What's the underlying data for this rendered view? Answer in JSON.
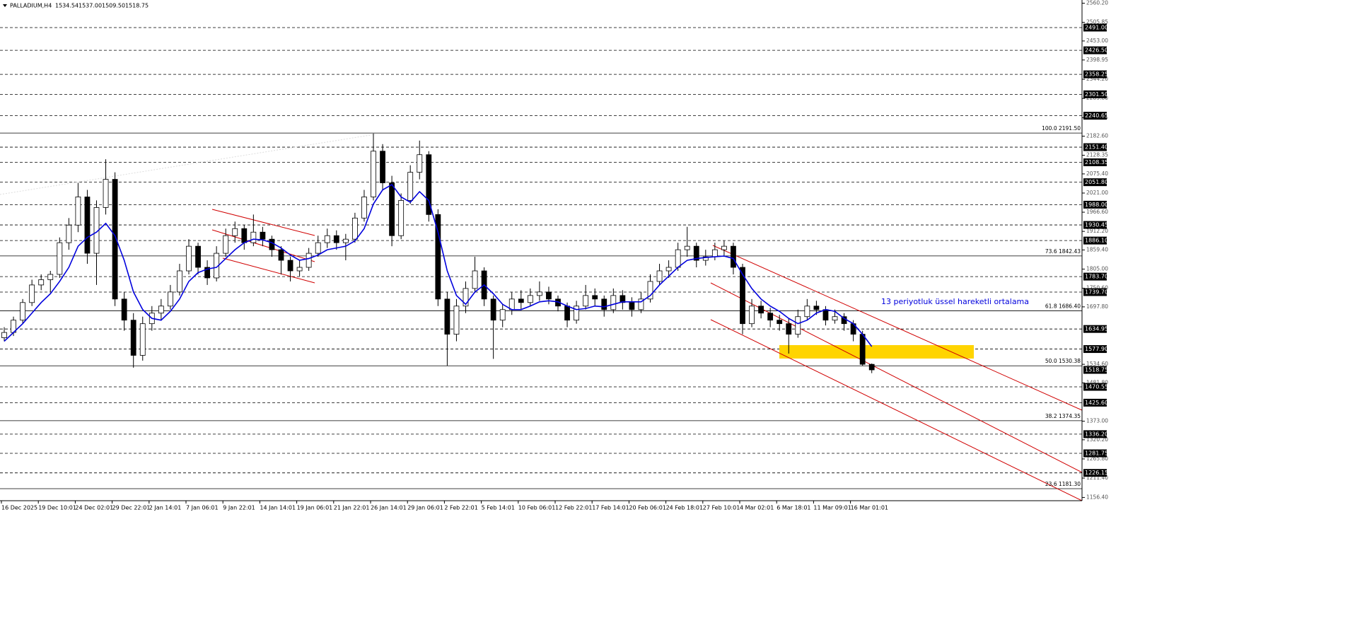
{
  "header": {
    "symbol": "PALLADIUM,H4",
    "ohlc": [
      "1534.54",
      "1537.00",
      "1509.50",
      "1518.75"
    ]
  },
  "annotation": "13 periyotluk üssel hareketli ortalama",
  "chart_data": {
    "type": "candlestick",
    "categories": [
      "16 Dec 2025",
      "19 Dec 10:01",
      "24 Dec 02:01",
      "29 Dec 22:01",
      "2 Jan 14:01",
      "7 Jan 06:01",
      "9 Jan 22:01",
      "14 Jan 14:01",
      "19 Jan 06:01",
      "21 Jan 22:01",
      "26 Jan 14:01",
      "29 Jan 06:01",
      "2 Feb 22:01",
      "5 Feb 14:01",
      "10 Feb 06:01",
      "12 Feb 22:01",
      "17 Feb 14:01",
      "20 Feb 06:01",
      "24 Feb 18:01",
      "27 Feb 10:01",
      "4 Mar 02:01",
      "6 Mar 18:01",
      "11 Mar 09:01",
      "16 Mar 01:01"
    ],
    "ylim": [
      1147.18,
      2569.34
    ],
    "yticks": [
      {
        "value": 2560.2,
        "label": "2560.20"
      },
      {
        "value": 2505.85,
        "label": "2505.85"
      },
      {
        "value": 2453,
        "label": "2453.00"
      },
      {
        "value": 2398.95,
        "label": "2398.95"
      },
      {
        "value": 2344.2,
        "label": "2344.20"
      },
      {
        "value": 2289.8,
        "label": "2289.80"
      },
      {
        "value": 2235.05,
        "label": "2235.05"
      },
      {
        "value": 2182.6,
        "label": "2182.60"
      },
      {
        "value": 2128.35,
        "label": "2128.35"
      },
      {
        "value": 2075.4,
        "label": "2075.40"
      },
      {
        "value": 2021,
        "label": "2021.00"
      },
      {
        "value": 1966.6,
        "label": "1966.60"
      },
      {
        "value": 1912.2,
        "label": "1912.20"
      },
      {
        "value": 1859.4,
        "label": "1859.40"
      },
      {
        "value": 1805,
        "label": "1805.00"
      },
      {
        "value": 1750.6,
        "label": "1750.60"
      },
      {
        "value": 1697.8,
        "label": "1697.80"
      },
      {
        "value": 1534.6,
        "label": "1534.60"
      },
      {
        "value": 1481.8,
        "label": "1481.80"
      },
      {
        "value": 1373,
        "label": "1373.00"
      },
      {
        "value": 1320.2,
        "label": "1320.20"
      },
      {
        "value": 1265.8,
        "label": "1265.80"
      },
      {
        "value": 1211.4,
        "label": "1211.40"
      },
      {
        "value": 1156.4,
        "label": "1156.40"
      }
    ],
    "levels": [
      {
        "value": 2491,
        "label": "2491.00"
      },
      {
        "value": 2426.5,
        "label": "2426.50"
      },
      {
        "value": 2358.25,
        "label": "2358.25"
      },
      {
        "value": 2301.5,
        "label": "2301.50"
      },
      {
        "value": 2240.65,
        "label": "2240.65"
      },
      {
        "value": 2151.4,
        "label": "2151.40"
      },
      {
        "value": 2108.35,
        "label": "2108.35"
      },
      {
        "value": 2051.8,
        "label": "2051.80"
      },
      {
        "value": 1988,
        "label": "1988.00"
      },
      {
        "value": 1930.45,
        "label": "1930.45"
      },
      {
        "value": 1886.1,
        "label": "1886.10"
      },
      {
        "value": 1783.7,
        "label": "1783.70"
      },
      {
        "value": 1739.7,
        "label": "1739.70"
      },
      {
        "value": 1634.95,
        "label": "1634.95"
      },
      {
        "value": 1577.9,
        "label": "1577.90"
      },
      {
        "value": 1470.55,
        "label": "1470.55"
      },
      {
        "value": 1425.6,
        "label": "1425.60"
      },
      {
        "value": 1336.2,
        "label": "1336.20"
      },
      {
        "value": 1281.75,
        "label": "1281.75"
      },
      {
        "value": 1226.15,
        "label": "1226.15"
      }
    ],
    "fib": [
      {
        "value": 2191.5,
        "label": "100.0 2191.50"
      },
      {
        "value": 1842.43,
        "label": "73.6 1842.43"
      },
      {
        "value": 1686.4,
        "label": "61.8 1686.40"
      },
      {
        "value": 1530.38,
        "label": "50.0 1530.38"
      },
      {
        "value": 1374.35,
        "label": "38.2 1374.35"
      },
      {
        "value": 1181.3,
        "label": "23.6 1181.30"
      }
    ],
    "ohlc": [
      [
        1610,
        1640,
        1600,
        1625
      ],
      [
        1625,
        1670,
        1615,
        1660
      ],
      [
        1660,
        1720,
        1650,
        1710
      ],
      [
        1710,
        1775,
        1700,
        1760
      ],
      [
        1760,
        1790,
        1745,
        1775
      ],
      [
        1775,
        1800,
        1740,
        1790
      ],
      [
        1790,
        1895,
        1780,
        1880
      ],
      [
        1880,
        1950,
        1860,
        1930
      ],
      [
        1930,
        2050,
        1910,
        2010
      ],
      [
        2010,
        2030,
        1820,
        1850
      ],
      [
        1850,
        2000,
        1760,
        1980
      ],
      [
        1980,
        2117,
        1960,
        2060
      ],
      [
        2060,
        2080,
        1700,
        1720
      ],
      [
        1720,
        1740,
        1630,
        1660
      ],
      [
        1660,
        1680,
        1525,
        1560
      ],
      [
        1560,
        1670,
        1545,
        1650
      ],
      [
        1650,
        1700,
        1630,
        1680
      ],
      [
        1680,
        1720,
        1660,
        1700
      ],
      [
        1700,
        1760,
        1690,
        1740
      ],
      [
        1740,
        1820,
        1730,
        1800
      ],
      [
        1800,
        1890,
        1790,
        1870
      ],
      [
        1870,
        1880,
        1790,
        1810
      ],
      [
        1810,
        1830,
        1760,
        1780
      ],
      [
        1780,
        1870,
        1770,
        1850
      ],
      [
        1850,
        1920,
        1840,
        1900
      ],
      [
        1900,
        1940,
        1880,
        1920
      ],
      [
        1920,
        1930,
        1860,
        1880
      ],
      [
        1880,
        1960,
        1870,
        1910
      ],
      [
        1910,
        1925,
        1870,
        1890
      ],
      [
        1890,
        1900,
        1840,
        1860
      ],
      [
        1860,
        1870,
        1790,
        1830
      ],
      [
        1830,
        1840,
        1770,
        1800
      ],
      [
        1800,
        1830,
        1785,
        1810
      ],
      [
        1810,
        1865,
        1800,
        1850
      ],
      [
        1850,
        1900,
        1840,
        1880
      ],
      [
        1880,
        1920,
        1865,
        1900
      ],
      [
        1900,
        1915,
        1860,
        1880
      ],
      [
        1880,
        1905,
        1830,
        1890
      ],
      [
        1890,
        1965,
        1880,
        1950
      ],
      [
        1950,
        2030,
        1940,
        2010
      ],
      [
        2010,
        2190,
        2000,
        2140
      ],
      [
        2140,
        2160,
        2030,
        2050
      ],
      [
        2050,
        2070,
        1870,
        1900
      ],
      [
        1900,
        2020,
        1890,
        2000
      ],
      [
        2000,
        2100,
        1990,
        2080
      ],
      [
        2080,
        2170,
        2060,
        2130
      ],
      [
        2130,
        2140,
        1940,
        1960
      ],
      [
        1960,
        1975,
        1700,
        1720
      ],
      [
        1720,
        1740,
        1530,
        1620
      ],
      [
        1620,
        1720,
        1600,
        1700
      ],
      [
        1700,
        1770,
        1680,
        1750
      ],
      [
        1750,
        1840,
        1740,
        1800
      ],
      [
        1800,
        1810,
        1700,
        1720
      ],
      [
        1720,
        1730,
        1550,
        1660
      ],
      [
        1660,
        1705,
        1640,
        1690
      ],
      [
        1690,
        1740,
        1675,
        1720
      ],
      [
        1720,
        1745,
        1690,
        1710
      ],
      [
        1710,
        1750,
        1700,
        1730
      ],
      [
        1730,
        1770,
        1715,
        1740
      ],
      [
        1740,
        1755,
        1705,
        1720
      ],
      [
        1720,
        1730,
        1685,
        1700
      ],
      [
        1700,
        1710,
        1640,
        1660
      ],
      [
        1660,
        1715,
        1650,
        1700
      ],
      [
        1700,
        1760,
        1690,
        1730
      ],
      [
        1730,
        1750,
        1700,
        1720
      ],
      [
        1720,
        1730,
        1670,
        1690
      ],
      [
        1690,
        1750,
        1680,
        1730
      ],
      [
        1730,
        1745,
        1690,
        1710
      ],
      [
        1710,
        1725,
        1670,
        1690
      ],
      [
        1690,
        1740,
        1680,
        1720
      ],
      [
        1720,
        1790,
        1710,
        1770
      ],
      [
        1770,
        1820,
        1760,
        1800
      ],
      [
        1800,
        1830,
        1780,
        1810
      ],
      [
        1810,
        1880,
        1800,
        1860
      ],
      [
        1860,
        1925,
        1840,
        1870
      ],
      [
        1870,
        1880,
        1810,
        1830
      ],
      [
        1830,
        1860,
        1815,
        1840
      ],
      [
        1840,
        1880,
        1830,
        1860
      ],
      [
        1860,
        1885,
        1840,
        1870
      ],
      [
        1870,
        1880,
        1790,
        1810
      ],
      [
        1810,
        1820,
        1620,
        1650
      ],
      [
        1650,
        1720,
        1640,
        1700
      ],
      [
        1700,
        1715,
        1665,
        1680
      ],
      [
        1680,
        1695,
        1640,
        1660
      ],
      [
        1660,
        1675,
        1630,
        1650
      ],
      [
        1650,
        1665,
        1565,
        1620
      ],
      [
        1620,
        1690,
        1610,
        1670
      ],
      [
        1670,
        1720,
        1660,
        1700
      ],
      [
        1700,
        1715,
        1675,
        1690
      ],
      [
        1690,
        1700,
        1645,
        1660
      ],
      [
        1660,
        1690,
        1650,
        1670
      ],
      [
        1670,
        1680,
        1630,
        1650
      ],
      [
        1650,
        1660,
        1600,
        1620
      ],
      [
        1620,
        1630,
        1530,
        1534.54
      ],
      [
        1534.54,
        1537,
        1509.5,
        1518.75
      ]
    ],
    "ema": {
      "color": "#0000dd",
      "values": [
        1600,
        1625,
        1650,
        1680,
        1710,
        1735,
        1770,
        1810,
        1870,
        1895,
        1910,
        1935,
        1900,
        1830,
        1740,
        1690,
        1665,
        1660,
        1685,
        1720,
        1770,
        1795,
        1805,
        1810,
        1835,
        1860,
        1880,
        1890,
        1888,
        1880,
        1865,
        1845,
        1830,
        1835,
        1845,
        1860,
        1865,
        1870,
        1885,
        1920,
        1990,
        2030,
        2045,
        2010,
        1995,
        2025,
        2000,
        1910,
        1800,
        1730,
        1705,
        1740,
        1760,
        1735,
        1705,
        1690,
        1690,
        1700,
        1712,
        1715,
        1712,
        1700,
        1690,
        1693,
        1700,
        1698,
        1705,
        1712,
        1712,
        1712,
        1730,
        1760,
        1785,
        1810,
        1830,
        1835,
        1838,
        1840,
        1842,
        1835,
        1790,
        1750,
        1720,
        1700,
        1685,
        1665,
        1650,
        1660,
        1680,
        1690,
        1685,
        1665,
        1650,
        1620,
        1585
      ]
    }
  }
}
